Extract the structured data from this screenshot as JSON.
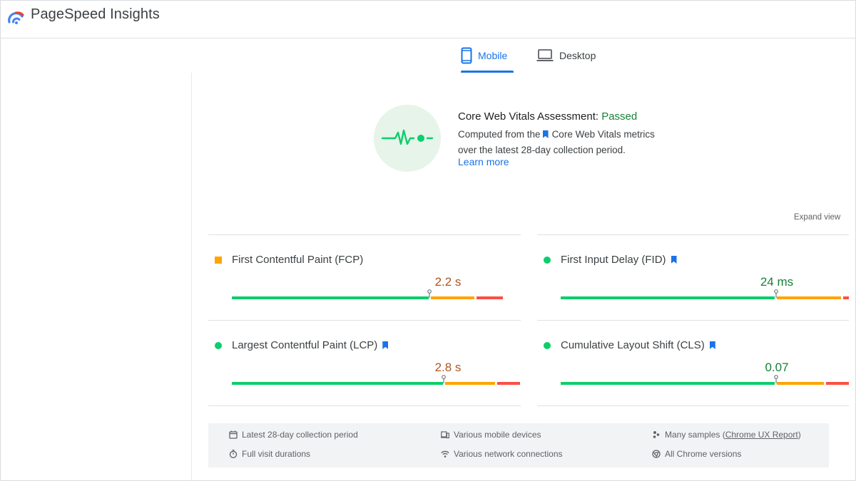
{
  "app": {
    "title": "PageSpeed Insights"
  },
  "tabs": [
    {
      "label": "Mobile",
      "selected": true
    },
    {
      "label": "Desktop",
      "selected": false
    }
  ],
  "assessment": {
    "title_prefix": "Core Web Vitals Assessment: ",
    "status": "Passed",
    "desc_line1_prefix": "Computed from the",
    "desc_line1_link": "Core Web Vitals metrics",
    "desc_line2": "over the latest 28-day collection period.",
    "learn_more": "Learn more"
  },
  "expand_view": "Expand view",
  "metrics": [
    {
      "label": "First Contentful Paint (FCP)",
      "value": "2.2 s",
      "rating": "needs-improvement",
      "core": false
    },
    {
      "label": "First Input Delay (FID)",
      "value": "24 ms",
      "rating": "good",
      "core": true
    },
    {
      "label": "Largest Contentful Paint (LCP)",
      "value": "2.8 s",
      "rating": "needs-improvement",
      "core": true
    },
    {
      "label": "Cumulative Layout Shift (CLS)",
      "value": "0.07",
      "rating": "good",
      "core": true
    }
  ],
  "distributions": [
    {
      "good": 0.69,
      "ni": 0.16,
      "poor": 0.09
    },
    {
      "good": 0.75,
      "ni": 0.23,
      "poor": 0.02
    },
    {
      "good": 0.74,
      "ni": 0.18,
      "poor": 0.08
    },
    {
      "good": 0.75,
      "ni": 0.17,
      "poor": 0.08
    }
  ],
  "footer": {
    "collection_period": "Latest 28-day collection period",
    "devices": "Various mobile devices",
    "samples_prefix": "Many samples (",
    "samples_link": "Chrome UX Report",
    "samples_suffix": ")",
    "durations": "Full visit durations",
    "network": "Various network connections",
    "chrome_versions": "All Chrome versions"
  },
  "colors": {
    "accent": "#1a73e8",
    "good": "#0cce6b",
    "needs_improvement": "#ffa400",
    "poor": "#ff4e42",
    "pass_text": "#188038"
  }
}
